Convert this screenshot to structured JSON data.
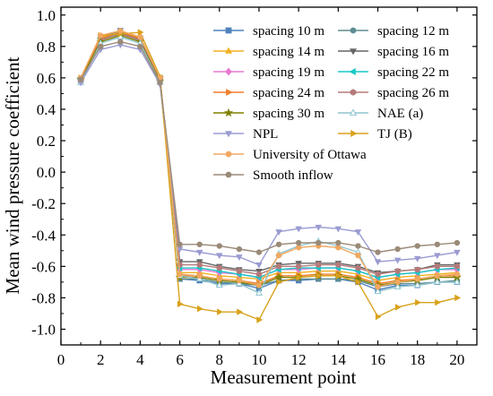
{
  "chart_data": {
    "type": "line",
    "xlabel": "Measurement point",
    "ylabel": "Mean wind pressure coefficient",
    "xlim": [
      0,
      21
    ],
    "ylim": [
      -1.1,
      1.05
    ],
    "x_ticks": [
      0,
      2,
      4,
      6,
      8,
      10,
      12,
      14,
      16,
      18,
      20
    ],
    "x_tick_labels": [
      "0",
      "2",
      "4",
      "6",
      "8",
      "10",
      "12",
      "14",
      "16",
      "18",
      "20"
    ],
    "y_ticks": [
      -1.0,
      -0.8,
      -0.6,
      -0.4,
      -0.2,
      0.0,
      0.2,
      0.4,
      0.6,
      0.8,
      1.0
    ],
    "y_tick_labels": [
      "-1.0",
      "-0.8",
      "-0.6",
      "-0.4",
      "-0.2",
      "0.0",
      "0.2",
      "0.4",
      "0.6",
      "0.8",
      "1.0"
    ],
    "grid": false,
    "legend_position": "top-right",
    "x": [
      1,
      2,
      3,
      4,
      5,
      6,
      7,
      8,
      9,
      10,
      11,
      12,
      13,
      14,
      15,
      16,
      17,
      18,
      19,
      20
    ],
    "series": [
      {
        "name": "spacing 10 m",
        "color": "#4f81bd",
        "marker": "square",
        "values": [
          0.59,
          0.86,
          0.9,
          0.85,
          0.6,
          -0.68,
          -0.69,
          -0.71,
          -0.71,
          -0.74,
          -0.69,
          -0.69,
          -0.68,
          -0.68,
          -0.7,
          -0.75,
          -0.72,
          -0.72,
          -0.7,
          -0.7
        ]
      },
      {
        "name": "spacing 12 m",
        "color": "#5d8d92",
        "marker": "circle",
        "values": [
          0.58,
          0.85,
          0.89,
          0.84,
          0.59,
          -0.68,
          -0.68,
          -0.7,
          -0.71,
          -0.72,
          -0.69,
          -0.68,
          -0.68,
          -0.68,
          -0.69,
          -0.73,
          -0.71,
          -0.71,
          -0.7,
          -0.69
        ]
      },
      {
        "name": "spacing 14 m",
        "color": "#f0b020",
        "marker": "triangle-up",
        "values": [
          0.59,
          0.86,
          0.89,
          0.86,
          0.6,
          -0.64,
          -0.64,
          -0.66,
          -0.67,
          -0.68,
          -0.64,
          -0.64,
          -0.63,
          -0.63,
          -0.65,
          -0.69,
          -0.67,
          -0.66,
          -0.65,
          -0.64
        ]
      },
      {
        "name": "spacing 16 m",
        "color": "#666666",
        "marker": "triangle-down",
        "values": [
          0.59,
          0.84,
          0.88,
          0.85,
          0.59,
          -0.57,
          -0.57,
          -0.6,
          -0.62,
          -0.63,
          -0.59,
          -0.58,
          -0.58,
          -0.58,
          -0.6,
          -0.64,
          -0.63,
          -0.62,
          -0.59,
          -0.59
        ]
      },
      {
        "name": "spacing 19 m",
        "color": "#e67ad2",
        "marker": "diamond",
        "values": [
          0.58,
          0.85,
          0.88,
          0.84,
          0.59,
          -0.62,
          -0.62,
          -0.64,
          -0.65,
          -0.67,
          -0.62,
          -0.62,
          -0.61,
          -0.61,
          -0.63,
          -0.67,
          -0.65,
          -0.64,
          -0.62,
          -0.62
        ]
      },
      {
        "name": "spacing 22 m",
        "color": "#16c7c7",
        "marker": "triangle-left",
        "values": [
          0.59,
          0.85,
          0.88,
          0.84,
          0.59,
          -0.61,
          -0.61,
          -0.63,
          -0.65,
          -0.67,
          -0.62,
          -0.61,
          -0.61,
          -0.61,
          -0.63,
          -0.67,
          -0.65,
          -0.64,
          -0.62,
          -0.61
        ]
      },
      {
        "name": "spacing 24 m",
        "color": "#f07d2a",
        "marker": "triangle-right",
        "values": [
          0.59,
          0.85,
          0.89,
          0.85,
          0.6,
          -0.66,
          -0.66,
          -0.68,
          -0.69,
          -0.71,
          -0.66,
          -0.66,
          -0.65,
          -0.65,
          -0.67,
          -0.71,
          -0.69,
          -0.68,
          -0.66,
          -0.66
        ]
      },
      {
        "name": "spacing 26 m",
        "color": "#b57a7a",
        "marker": "hexagon",
        "values": [
          0.58,
          0.84,
          0.88,
          0.84,
          0.59,
          -0.59,
          -0.59,
          -0.61,
          -0.63,
          -0.65,
          -0.6,
          -0.6,
          -0.59,
          -0.59,
          -0.61,
          -0.65,
          -0.63,
          -0.62,
          -0.6,
          -0.6
        ]
      },
      {
        "name": "spacing 30 m",
        "color": "#808000",
        "marker": "star",
        "values": [
          0.59,
          0.83,
          0.87,
          0.83,
          0.58,
          -0.67,
          -0.67,
          -0.69,
          -0.7,
          -0.72,
          -0.67,
          -0.67,
          -0.66,
          -0.66,
          -0.68,
          -0.72,
          -0.7,
          -0.69,
          -0.67,
          -0.67
        ]
      },
      {
        "name": "NAE (a)",
        "color": "#8fc5cf",
        "marker": "triangle-up-open",
        "values": [
          0.57,
          0.82,
          0.86,
          0.82,
          0.57,
          -0.66,
          -0.68,
          -0.72,
          -0.71,
          -0.77,
          -0.52,
          -0.47,
          -0.44,
          -0.47,
          -0.51,
          -0.76,
          -0.73,
          -0.72,
          -0.7,
          -0.7
        ]
      },
      {
        "name": "NPL",
        "color": "#9b9bd2",
        "marker": "triangle-down",
        "values": [
          0.57,
          0.78,
          0.81,
          0.78,
          0.56,
          -0.49,
          -0.51,
          -0.53,
          -0.54,
          -0.59,
          -0.38,
          -0.36,
          -0.35,
          -0.36,
          -0.38,
          -0.57,
          -0.56,
          -0.55,
          -0.53,
          -0.51
        ]
      },
      {
        "name": "TJ (B)",
        "color": "#d9a21c",
        "marker": "triangle-right",
        "values": [
          0.6,
          0.87,
          0.88,
          0.89,
          0.61,
          -0.84,
          -0.87,
          -0.89,
          -0.89,
          -0.94,
          -0.7,
          -0.67,
          -0.66,
          -0.66,
          -0.7,
          -0.92,
          -0.86,
          -0.83,
          -0.83,
          -0.8
        ]
      },
      {
        "name": "University of Ottawa",
        "color": "#f0a860",
        "marker": "circle",
        "values": [
          0.6,
          0.87,
          0.9,
          0.86,
          0.6,
          -0.65,
          -0.66,
          -0.68,
          -0.69,
          -0.72,
          -0.53,
          -0.48,
          -0.47,
          -0.48,
          -0.53,
          -0.73,
          -0.7,
          -0.68,
          -0.66,
          -0.65
        ]
      },
      {
        "name": "Smooth inflow",
        "color": "#9a8a78",
        "marker": "circle",
        "values": [
          0.59,
          0.8,
          0.83,
          0.8,
          0.57,
          -0.46,
          -0.46,
          -0.47,
          -0.49,
          -0.51,
          -0.46,
          -0.45,
          -0.45,
          -0.45,
          -0.47,
          -0.51,
          -0.49,
          -0.47,
          -0.46,
          -0.45
        ]
      }
    ]
  }
}
